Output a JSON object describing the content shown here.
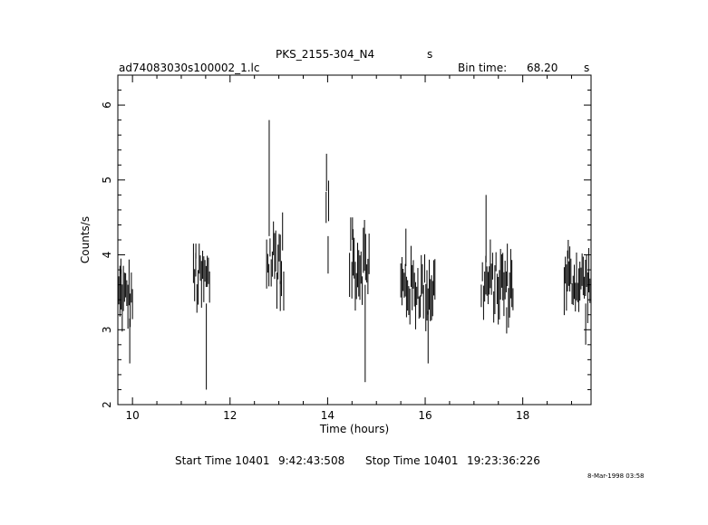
{
  "header": {
    "title": "PKS_2155-304_N4",
    "title_suffix": "s",
    "file_name": "ad74083030s100002_1.lc",
    "bin_time_label": "Bin time:",
    "bin_time_value": "68.20",
    "bin_time_unit": "s"
  },
  "footer": {
    "start_label": "Start Time 10401",
    "start_value": "9:42:43:508",
    "stop_label": "Stop Time 10401",
    "stop_value": "19:23:36:226",
    "stamp": "8-Mar-1998 03:58"
  },
  "chart_data": {
    "type": "scatter",
    "title": "PKS_2155-304_N4",
    "xlabel": "Time (hours)",
    "ylabel": "Counts/s",
    "xlim": [
      9.7,
      19.4
    ],
    "ylim": [
      2.0,
      6.4
    ],
    "xticks": [
      "10",
      "12",
      "14",
      "16",
      "18"
    ],
    "xtick_values": [
      10,
      12,
      14,
      16,
      18
    ],
    "yticks": [
      "2",
      "3",
      "4",
      "5",
      "6"
    ],
    "ytick_values": [
      2,
      3,
      4,
      5,
      6
    ],
    "grid": false,
    "segments": [
      {
        "x_start": 9.72,
        "x_end": 10.0,
        "mean": 3.45,
        "low": 2.55,
        "high": 3.95
      },
      {
        "x_start": 11.25,
        "x_end": 11.58,
        "mean": 3.65,
        "low": 2.2,
        "high": 4.15
      },
      {
        "x_start": 12.75,
        "x_end": 13.1,
        "mean": 3.95,
        "low": 3.25,
        "high": 5.8
      },
      {
        "x_start": 13.97,
        "x_end": 14.02,
        "mean": 4.55,
        "low": 3.75,
        "high": 5.35
      },
      {
        "x_start": 14.45,
        "x_end": 14.85,
        "mean": 3.9,
        "low": 2.3,
        "high": 4.5
      },
      {
        "x_start": 15.5,
        "x_end": 16.2,
        "mean": 3.55,
        "low": 2.55,
        "high": 4.35
      },
      {
        "x_start": 17.15,
        "x_end": 17.8,
        "mean": 3.6,
        "low": 2.95,
        "high": 4.8
      },
      {
        "x_start": 18.85,
        "x_end": 19.4,
        "mean": 3.65,
        "low": 2.8,
        "high": 4.2
      }
    ]
  }
}
